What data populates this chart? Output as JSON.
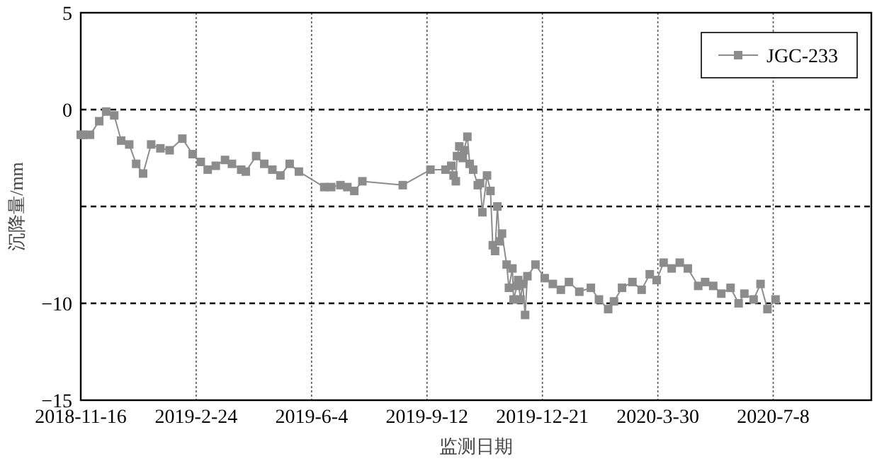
{
  "chart_data": {
    "type": "line",
    "xlabel": "监测日期",
    "ylabel": "沉降量/mm",
    "xlim": [
      "2018-11-16",
      "2020-10-01"
    ],
    "ylim": [
      -15,
      5
    ],
    "xticks": [
      {
        "value": "2018-11-16",
        "label": "2018-11-16"
      },
      {
        "value": "2019-02-24",
        "label": "2019-2-24"
      },
      {
        "value": "2019-06-04",
        "label": "2019-6-4"
      },
      {
        "value": "2019-09-12",
        "label": "2019-9-12"
      },
      {
        "value": "2019-12-21",
        "label": "2019-12-21"
      },
      {
        "value": "2020-03-30",
        "label": "2020-3-30"
      },
      {
        "value": "2020-07-08",
        "label": "2020-7-8"
      }
    ],
    "yticks": [
      5,
      0,
      {
        "value": -5,
        "label": null
      },
      -10,
      -15
    ],
    "grid": true,
    "legend": "top right",
    "marker": "square",
    "line_style": "solid",
    "series": [
      {
        "name": "JGC-233",
        "color": "#8c8c8c",
        "x": [
          "2018-11-16",
          "2018-11-18",
          "2018-11-24",
          "2018-12-02",
          "2018-12-08",
          "2018-12-15",
          "2018-12-21",
          "2018-12-28",
          "2019-01-03",
          "2019-01-09",
          "2019-01-16",
          "2019-01-24",
          "2019-02-01",
          "2019-02-12",
          "2019-02-21",
          "2019-02-28",
          "2019-03-06",
          "2019-03-13",
          "2019-03-21",
          "2019-03-27",
          "2019-04-04",
          "2019-04-08",
          "2019-04-17",
          "2019-04-24",
          "2019-05-01",
          "2019-05-08",
          "2019-05-16",
          "2019-05-24",
          "2019-06-15",
          "2019-06-21",
          "2019-06-29",
          "2019-07-05",
          "2019-07-11",
          "2019-07-18",
          "2019-08-22",
          "2019-09-15",
          "2019-09-28",
          "2019-10-03",
          "2019-10-05",
          "2019-10-07",
          "2019-10-08",
          "2019-10-10",
          "2019-10-13",
          "2019-10-14",
          "2019-10-17",
          "2019-10-19",
          "2019-10-22",
          "2019-10-26",
          "2019-10-28",
          "2019-10-30",
          "2019-11-03",
          "2019-11-06",
          "2019-11-08",
          "2019-11-10",
          "2019-11-12",
          "2019-11-14",
          "2019-11-16",
          "2019-11-20",
          "2019-11-22",
          "2019-11-25",
          "2019-11-26",
          "2019-11-29",
          "2019-11-30",
          "2019-12-02",
          "2019-12-04",
          "2019-12-06",
          "2019-12-08",
          "2019-12-15",
          "2019-12-23",
          "2019-12-30",
          "2020-01-06",
          "2020-01-13",
          "2020-01-22",
          "2020-02-01",
          "2020-02-08",
          "2020-02-16",
          "2020-02-21",
          "2020-02-28",
          "2020-03-08",
          "2020-03-16",
          "2020-03-23",
          "2020-03-29",
          "2020-04-04",
          "2020-04-11",
          "2020-04-18",
          "2020-04-25",
          "2020-05-04",
          "2020-05-10",
          "2020-05-17",
          "2020-05-24",
          "2020-06-01",
          "2020-06-08",
          "2020-06-13",
          "2020-06-21",
          "2020-06-27",
          "2020-07-03",
          "2020-07-10"
        ],
        "values": [
          -1.3,
          -1.3,
          -1.3,
          -0.6,
          -0.1,
          -0.3,
          -1.6,
          -1.8,
          -2.8,
          -3.3,
          -1.8,
          -2.0,
          -2.1,
          -1.5,
          -2.3,
          -2.7,
          -3.1,
          -2.9,
          -2.6,
          -2.8,
          -3.1,
          -3.2,
          -2.4,
          -2.8,
          -3.1,
          -3.4,
          -2.8,
          -3.2,
          -4.0,
          -4.0,
          -3.9,
          -4.0,
          -4.2,
          -3.7,
          -3.9,
          -3.1,
          -3.1,
          -2.9,
          -3.4,
          -3.7,
          -2.4,
          -1.9,
          -2.5,
          -2.1,
          -1.4,
          -2.8,
          -3.1,
          -3.9,
          -3.8,
          -5.3,
          -3.4,
          -4.2,
          -7.0,
          -7.3,
          -5.0,
          -6.8,
          -6.4,
          -8.0,
          -9.2,
          -8.2,
          -9.8,
          -9.1,
          -8.8,
          -9.8,
          -9.0,
          -10.6,
          -8.6,
          -8.0,
          -8.7,
          -9.0,
          -9.3,
          -8.9,
          -9.4,
          -9.2,
          -9.8,
          -10.3,
          -9.9,
          -9.2,
          -8.9,
          -9.3,
          -8.5,
          -8.8,
          -7.9,
          -8.2,
          -7.9,
          -8.2,
          -9.1,
          -8.9,
          -9.1,
          -9.5,
          -9.2,
          -10.0,
          -9.5,
          -9.8,
          -9.0,
          -10.3,
          -9.8
        ]
      }
    ]
  }
}
